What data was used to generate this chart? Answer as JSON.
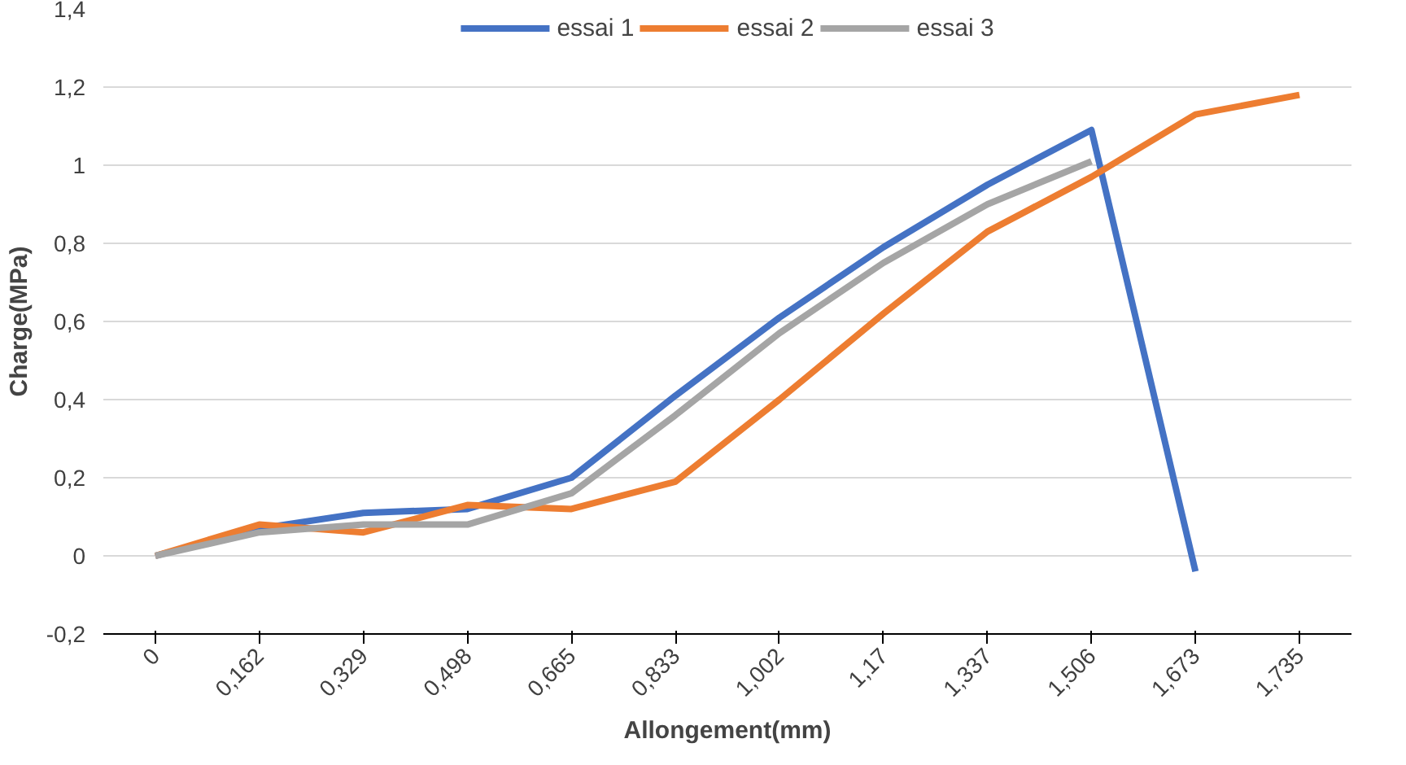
{
  "chart_data": {
    "type": "line",
    "xlabel": "Allongement(mm)",
    "ylabel": "Charge(MPa)",
    "categories": [
      "0",
      "0,162",
      "0,329",
      "0,498",
      "0,665",
      "0,833",
      "1,002",
      "1,17",
      "1,337",
      "1,506",
      "1,673",
      "1,735"
    ],
    "series": [
      {
        "name": "essai 1",
        "color": "#4472c4",
        "values": [
          0,
          0.07,
          0.11,
          0.12,
          0.2,
          0.41,
          0.61,
          0.79,
          0.95,
          1.09,
          -0.04,
          null
        ]
      },
      {
        "name": "essai 2",
        "color": "#ed7d31",
        "values": [
          0,
          0.08,
          0.06,
          0.13,
          0.12,
          0.19,
          0.4,
          0.62,
          0.83,
          0.97,
          1.13,
          1.18
        ]
      },
      {
        "name": "essai 3",
        "color": "#a5a5a5",
        "values": [
          0,
          0.06,
          0.08,
          0.08,
          0.16,
          0.36,
          0.57,
          0.75,
          0.9,
          1.01,
          null,
          null
        ]
      }
    ],
    "ylim": [
      -0.2,
      1.4
    ],
    "yticks": [
      {
        "value": -0.2,
        "label": "-0,2"
      },
      0,
      {
        "value": 0.2,
        "label": "0,2"
      },
      {
        "value": 0.4,
        "label": "0,4"
      },
      {
        "value": 0.6,
        "label": "0,6"
      },
      {
        "value": 0.8,
        "label": "0,8"
      },
      1,
      {
        "value": 1.2,
        "label": "1,2"
      },
      {
        "value": 1.4,
        "label": "1,4"
      }
    ],
    "grid": "y",
    "legend": "top",
    "marker": "none",
    "line_style": "solid"
  }
}
